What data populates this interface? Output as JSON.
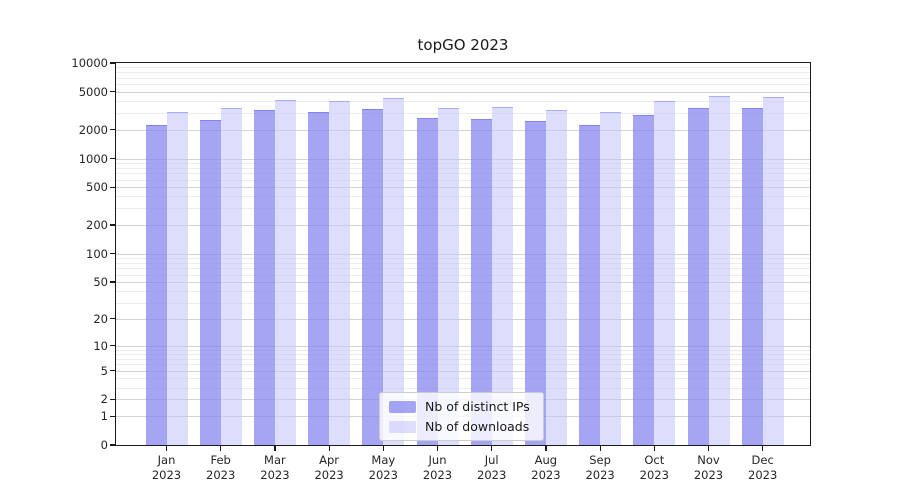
{
  "chart_data": {
    "type": "bar",
    "title": "topGO 2023",
    "year": "2023",
    "categories": [
      "Jan",
      "Feb",
      "Mar",
      "Apr",
      "May",
      "Jun",
      "Jul",
      "Aug",
      "Sep",
      "Oct",
      "Nov",
      "Dec"
    ],
    "xlabel": "",
    "ylabel": "",
    "y_scale": "log10(1+x)",
    "ylim": [
      0,
      10000
    ],
    "y_ticks": [
      0,
      1,
      2,
      5,
      10,
      20,
      50,
      100,
      200,
      500,
      1000,
      2000,
      5000,
      10000
    ],
    "grid": "horizontal, major and minor log gridlines",
    "legend_position": "lower center",
    "series": [
      {
        "name": "Nb of distinct IPs",
        "key": "distinct-ips",
        "color": "#8282f0",
        "alpha": 0.72,
        "values": [
          2250,
          2550,
          3200,
          3050,
          3300,
          2650,
          2600,
          2500,
          2250,
          2850,
          3350,
          3350
        ]
      },
      {
        "name": "Nb of downloads",
        "key": "downloads",
        "color": "#c2c2fa",
        "alpha": 0.56,
        "values": [
          3050,
          3350,
          4100,
          4050,
          4300,
          3400,
          3500,
          3200,
          3050,
          4050,
          4550,
          4400
        ]
      }
    ]
  }
}
